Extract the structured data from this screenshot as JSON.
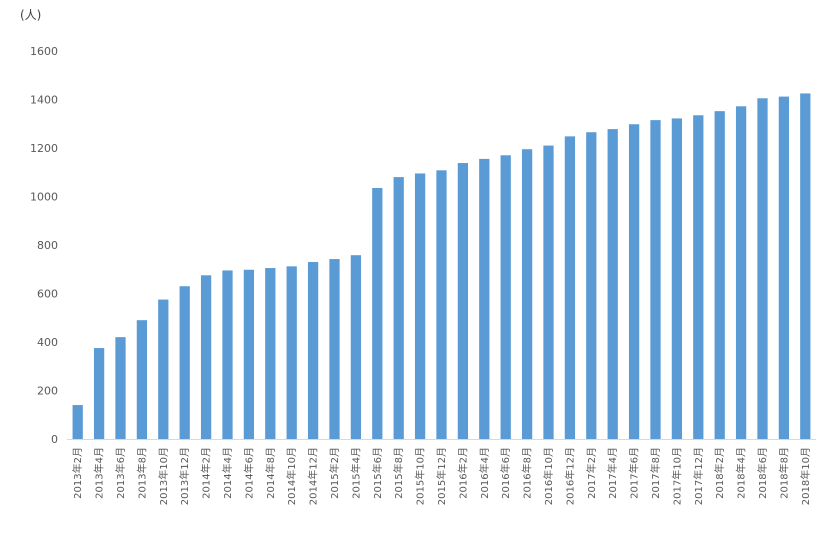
{
  "chart_data": {
    "type": "bar",
    "unit_label": "(人)",
    "categories": [
      "2013年2月",
      "2013年4月",
      "2013年6月",
      "2013年8月",
      "2013年10月",
      "2013年12月",
      "2014年2月",
      "2014年4月",
      "2014年6月",
      "2014年8月",
      "2014年10月",
      "2014年12月",
      "2015年2月",
      "2015年4月",
      "2015年6月",
      "2015年8月",
      "2015年10月",
      "2015年12月",
      "2016年2月",
      "2016年4月",
      "2016年6月",
      "2016年8月",
      "2016年10月",
      "2016年12月",
      "2017年2月",
      "2017年4月",
      "2017年6月",
      "2017年8月",
      "2017年10月",
      "2017年12月",
      "2018年2月",
      "2018年4月",
      "2018年6月",
      "2018年8月",
      "2018年10月"
    ],
    "values": [
      140,
      375,
      420,
      490,
      575,
      630,
      675,
      695,
      698,
      705,
      712,
      730,
      742,
      758,
      1035,
      1080,
      1095,
      1108,
      1138,
      1155,
      1170,
      1195,
      1210,
      1248,
      1265,
      1278,
      1298,
      1315,
      1322,
      1335,
      1352,
      1372,
      1405,
      1412,
      1425
    ],
    "ylim": [
      0,
      1600
    ],
    "yticks": [
      "0",
      "200",
      "400",
      "600",
      "800",
      "1000",
      "1200",
      "1400",
      "1600"
    ],
    "bar_color": "#5b9bd5",
    "grid": false
  }
}
